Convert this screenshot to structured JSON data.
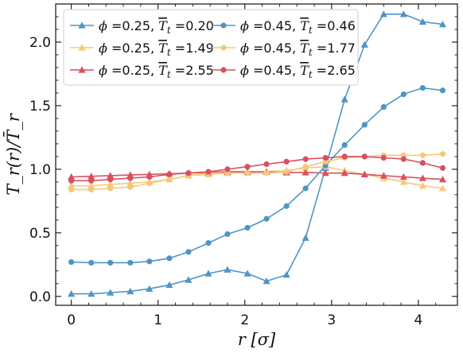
{
  "chart_data": {
    "type": "line",
    "xlabel": "r [σ]",
    "ylabel": "T_r(r)/T̄_r",
    "xlim": [
      -0.18,
      4.45
    ],
    "ylim": [
      -0.07,
      2.3
    ],
    "x_ticks": [
      0,
      1,
      2,
      3,
      4
    ],
    "y_ticks": [
      0.0,
      0.5,
      1.0,
      1.5,
      2.0
    ],
    "x_tick_labels": [
      "0",
      "1",
      "2",
      "3",
      "4"
    ],
    "y_tick_labels": [
      "0.0",
      "0.5",
      "1.0",
      "1.5",
      "2.0"
    ],
    "grid": false,
    "legend_position": "top-left",
    "x": [
      0.0,
      0.23,
      0.45,
      0.68,
      0.9,
      1.13,
      1.35,
      1.58,
      1.8,
      2.03,
      2.25,
      2.48,
      2.7,
      2.93,
      3.15,
      3.38,
      3.6,
      3.83,
      4.05,
      4.28
    ],
    "series": [
      {
        "name": "ϕ =0.25, T̄t =0.20",
        "phi": "0.25",
        "Tt": "0.20",
        "color": "#4f95c4",
        "marker": "triangle",
        "values": [
          0.02,
          0.02,
          0.03,
          0.04,
          0.06,
          0.09,
          0.13,
          0.18,
          0.21,
          0.18,
          0.12,
          0.17,
          0.46,
          1.01,
          1.55,
          1.98,
          2.22,
          2.22,
          2.16,
          2.14
        ]
      },
      {
        "name": "ϕ =0.25, T̄t =1.49",
        "phi": "0.25",
        "Tt": "1.49",
        "color": "#f7c87a",
        "marker": "triangle",
        "values": [
          0.87,
          0.87,
          0.88,
          0.89,
          0.9,
          0.92,
          0.95,
          0.96,
          0.97,
          0.97,
          0.98,
          0.99,
          1.01,
          1.02,
          0.99,
          0.96,
          0.93,
          0.9,
          0.87,
          0.85
        ]
      },
      {
        "name": "ϕ =0.25, T̄t =2.55",
        "phi": "0.25",
        "Tt": "2.55",
        "color": "#d9505f",
        "marker": "triangle",
        "values": [
          0.94,
          0.945,
          0.95,
          0.955,
          0.96,
          0.965,
          0.97,
          0.975,
          0.98,
          0.98,
          0.98,
          0.975,
          0.975,
          0.97,
          0.97,
          0.96,
          0.95,
          0.94,
          0.93,
          0.92
        ]
      },
      {
        "name": "ϕ =0.45, T̄t =0.46",
        "phi": "0.45",
        "Tt": "0.46",
        "color": "#4f95c4",
        "marker": "circle",
        "values": [
          0.27,
          0.265,
          0.265,
          0.265,
          0.275,
          0.3,
          0.35,
          0.42,
          0.49,
          0.54,
          0.61,
          0.71,
          0.85,
          1.03,
          1.19,
          1.35,
          1.49,
          1.59,
          1.64,
          1.62
        ]
      },
      {
        "name": "ϕ =0.45, T̄t =1.77",
        "phi": "0.45",
        "Tt": "1.77",
        "color": "#f7c87a",
        "marker": "circle",
        "values": [
          0.84,
          0.84,
          0.85,
          0.86,
          0.89,
          0.92,
          0.95,
          0.97,
          0.97,
          0.97,
          0.97,
          0.98,
          1.02,
          1.06,
          1.09,
          1.1,
          1.11,
          1.11,
          1.11,
          1.12
        ]
      },
      {
        "name": "ϕ =0.45, T̄t =2.65",
        "phi": "0.45",
        "Tt": "2.65",
        "color": "#d9505f",
        "marker": "circle",
        "values": [
          0.91,
          0.91,
          0.92,
          0.93,
          0.94,
          0.96,
          0.97,
          0.98,
          1.0,
          1.02,
          1.04,
          1.06,
          1.08,
          1.09,
          1.1,
          1.1,
          1.09,
          1.08,
          1.05,
          1.01
        ]
      }
    ]
  }
}
